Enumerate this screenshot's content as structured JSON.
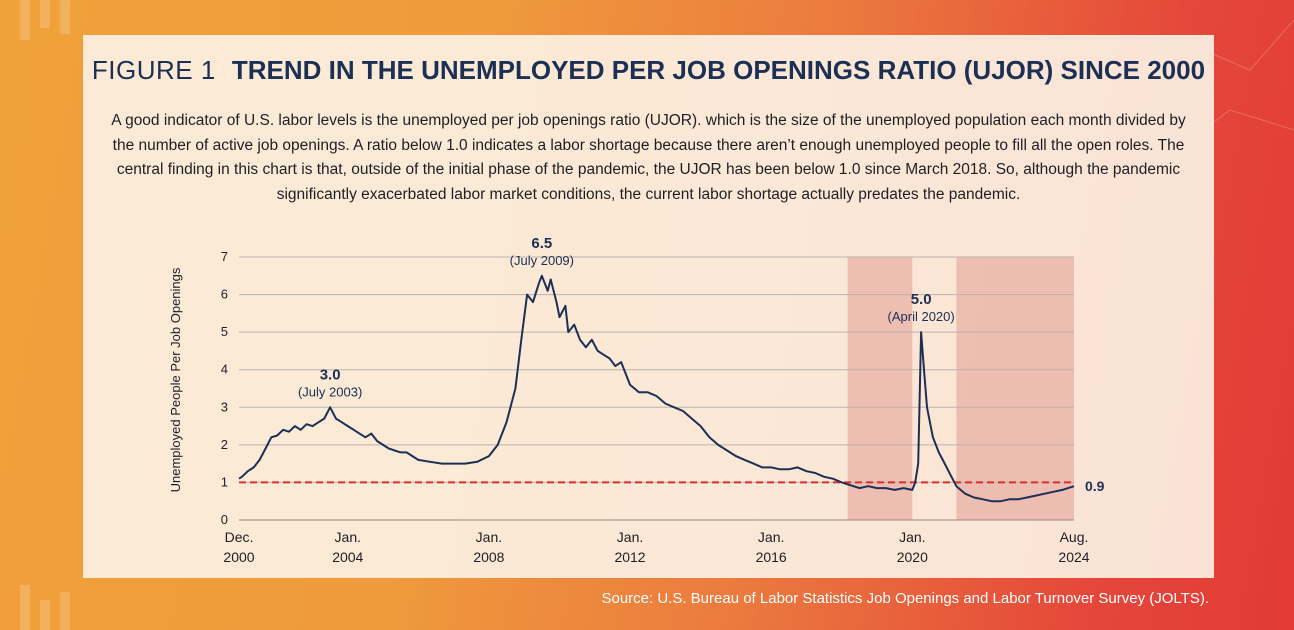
{
  "figure_label": "FIGURE 1",
  "title": "TREND IN THE UNEMPLOYED PER JOB OPENINGS RATIO (UJOR) SINCE 2000",
  "description": "A good indicator of U.S. labor levels is the unemployed per job openings ratio (UJOR). which is the size of the unemployed population each month divided by the number of active job openings. A ratio below 1.0 indicates a labor shortage because there aren’t enough unemployed people to fill all the open roles. The central finding in this chart is that, outside of the initial phase of the pandemic, the UJOR has been below 1.0 since March 2018. So, although the pandemic significantly exacerbated labor market conditions, the current labor shortage actually predates the pandemic.",
  "source": "Source: U.S. Bureau of Labor Statistics Job Openings and Labor Turnover Survey (JOLTS).",
  "colors": {
    "line": "#1c2f54",
    "reference": "#d8302c",
    "shade": "#e39c96",
    "label": "#1c2f54"
  },
  "chart_data": {
    "type": "line",
    "ylabel": "Unemployed People Per Job Openings",
    "ylim": [
      0,
      7
    ],
    "yticks": [
      0,
      1,
      2,
      3,
      4,
      5,
      6,
      7
    ],
    "xlim": [
      2000.917,
      2024.583
    ],
    "xticks": [
      {
        "x": 2000.917,
        "line1": "Dec.",
        "line2": "2000"
      },
      {
        "x": 2004.0,
        "line1": "Jan.",
        "line2": "2004"
      },
      {
        "x": 2008.0,
        "line1": "Jan.",
        "line2": "2008"
      },
      {
        "x": 2012.0,
        "line1": "Jan.",
        "line2": "2012"
      },
      {
        "x": 2016.0,
        "line1": "Jan.",
        "line2": "2016"
      },
      {
        "x": 2020.0,
        "line1": "Jan.",
        "line2": "2020"
      },
      {
        "x": 2024.583,
        "line1": "Aug.",
        "line2": "2024"
      }
    ],
    "grid": true,
    "reference_line": {
      "y": 1.0,
      "style": "dashed"
    },
    "shaded_ranges": [
      [
        2018.167,
        2020.0
      ],
      [
        2021.25,
        2024.583
      ]
    ],
    "annotations": [
      {
        "x": 2003.5,
        "y": 3.0,
        "value": "3.0",
        "label": "(July 2003)"
      },
      {
        "x": 2009.5,
        "y": 6.5,
        "value": "6.5",
        "label": "(July 2009)"
      },
      {
        "x": 2020.25,
        "y": 5.0,
        "value": "5.0",
        "label": "(April 2020)"
      }
    ],
    "end_label": "0.9",
    "series": [
      {
        "points": [
          [
            2000.917,
            1.1
          ],
          [
            2001.0,
            1.15
          ],
          [
            2001.167,
            1.3
          ],
          [
            2001.333,
            1.4
          ],
          [
            2001.5,
            1.6
          ],
          [
            2001.667,
            1.9
          ],
          [
            2001.833,
            2.2
          ],
          [
            2002.0,
            2.25
          ],
          [
            2002.167,
            2.4
          ],
          [
            2002.333,
            2.35
          ],
          [
            2002.5,
            2.5
          ],
          [
            2002.667,
            2.4
          ],
          [
            2002.833,
            2.55
          ],
          [
            2003.0,
            2.5
          ],
          [
            2003.167,
            2.6
          ],
          [
            2003.333,
            2.7
          ],
          [
            2003.5,
            3.0
          ],
          [
            2003.667,
            2.7
          ],
          [
            2003.833,
            2.6
          ],
          [
            2004.0,
            2.5
          ],
          [
            2004.167,
            2.4
          ],
          [
            2004.333,
            2.3
          ],
          [
            2004.5,
            2.2
          ],
          [
            2004.667,
            2.3
          ],
          [
            2004.833,
            2.1
          ],
          [
            2005.0,
            2.0
          ],
          [
            2005.167,
            1.9
          ],
          [
            2005.333,
            1.85
          ],
          [
            2005.5,
            1.8
          ],
          [
            2005.667,
            1.8
          ],
          [
            2005.833,
            1.7
          ],
          [
            2006.0,
            1.6
          ],
          [
            2006.333,
            1.55
          ],
          [
            2006.667,
            1.5
          ],
          [
            2007.0,
            1.5
          ],
          [
            2007.333,
            1.5
          ],
          [
            2007.667,
            1.55
          ],
          [
            2008.0,
            1.7
          ],
          [
            2008.25,
            2.0
          ],
          [
            2008.5,
            2.6
          ],
          [
            2008.75,
            3.5
          ],
          [
            2008.917,
            4.8
          ],
          [
            2009.083,
            6.0
          ],
          [
            2009.25,
            5.8
          ],
          [
            2009.417,
            6.3
          ],
          [
            2009.5,
            6.5
          ],
          [
            2009.667,
            6.1
          ],
          [
            2009.75,
            6.4
          ],
          [
            2009.917,
            5.8
          ],
          [
            2010.0,
            5.4
          ],
          [
            2010.167,
            5.7
          ],
          [
            2010.25,
            5.0
          ],
          [
            2010.417,
            5.2
          ],
          [
            2010.583,
            4.8
          ],
          [
            2010.75,
            4.6
          ],
          [
            2010.917,
            4.8
          ],
          [
            2011.083,
            4.5
          ],
          [
            2011.25,
            4.4
          ],
          [
            2011.417,
            4.3
          ],
          [
            2011.583,
            4.1
          ],
          [
            2011.75,
            4.2
          ],
          [
            2012.0,
            3.6
          ],
          [
            2012.25,
            3.4
          ],
          [
            2012.5,
            3.4
          ],
          [
            2012.75,
            3.3
          ],
          [
            2013.0,
            3.1
          ],
          [
            2013.25,
            3.0
          ],
          [
            2013.5,
            2.9
          ],
          [
            2013.75,
            2.7
          ],
          [
            2014.0,
            2.5
          ],
          [
            2014.25,
            2.2
          ],
          [
            2014.5,
            2.0
          ],
          [
            2014.75,
            1.85
          ],
          [
            2015.0,
            1.7
          ],
          [
            2015.25,
            1.6
          ],
          [
            2015.5,
            1.5
          ],
          [
            2015.75,
            1.4
          ],
          [
            2016.0,
            1.4
          ],
          [
            2016.25,
            1.35
          ],
          [
            2016.5,
            1.35
          ],
          [
            2016.75,
            1.4
          ],
          [
            2017.0,
            1.3
          ],
          [
            2017.25,
            1.25
          ],
          [
            2017.5,
            1.15
          ],
          [
            2017.75,
            1.1
          ],
          [
            2018.0,
            1.0
          ],
          [
            2018.167,
            0.95
          ],
          [
            2018.5,
            0.85
          ],
          [
            2018.75,
            0.9
          ],
          [
            2019.0,
            0.85
          ],
          [
            2019.25,
            0.85
          ],
          [
            2019.5,
            0.8
          ],
          [
            2019.75,
            0.85
          ],
          [
            2020.0,
            0.8
          ],
          [
            2020.083,
            1.0
          ],
          [
            2020.167,
            1.5
          ],
          [
            2020.25,
            5.0
          ],
          [
            2020.333,
            4.0
          ],
          [
            2020.417,
            3.0
          ],
          [
            2020.583,
            2.2
          ],
          [
            2020.75,
            1.8
          ],
          [
            2020.917,
            1.5
          ],
          [
            2021.083,
            1.2
          ],
          [
            2021.25,
            0.9
          ],
          [
            2021.5,
            0.7
          ],
          [
            2021.75,
            0.6
          ],
          [
            2022.0,
            0.55
          ],
          [
            2022.25,
            0.5
          ],
          [
            2022.5,
            0.5
          ],
          [
            2022.75,
            0.55
          ],
          [
            2023.0,
            0.55
          ],
          [
            2023.25,
            0.6
          ],
          [
            2023.5,
            0.65
          ],
          [
            2023.75,
            0.7
          ],
          [
            2024.0,
            0.75
          ],
          [
            2024.25,
            0.8
          ],
          [
            2024.583,
            0.9
          ]
        ]
      }
    ]
  }
}
